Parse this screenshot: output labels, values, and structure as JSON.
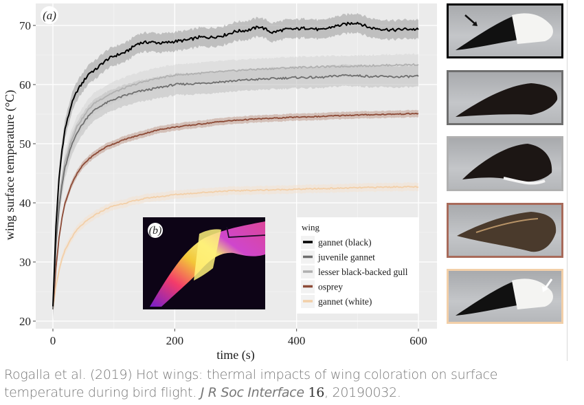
{
  "chart_data": {
    "type": "line",
    "panel_label": "(a)",
    "inset_label": "(b)",
    "xlabel": "time (s)",
    "ylabel": "wing surface temperature (°C)",
    "xlim": [
      -20,
      620
    ],
    "ylim": [
      18.5,
      73.5
    ],
    "xticks": [
      0,
      200,
      400,
      600
    ],
    "yticks": [
      20,
      30,
      40,
      50,
      60,
      70
    ],
    "grid": true,
    "legend": {
      "title": "wing",
      "position": "bottom-right"
    },
    "series": [
      {
        "name": "gannet (black)",
        "color": "#000000",
        "band": "#9a9a9a",
        "x": [
          0,
          5,
          10,
          15,
          20,
          30,
          40,
          50,
          60,
          70,
          80,
          90,
          100,
          120,
          140,
          160,
          180,
          200,
          220,
          240,
          260,
          280,
          300,
          320,
          340,
          360,
          380,
          400,
          420,
          440,
          460,
          480,
          500,
          520,
          540,
          560,
          580,
          600
        ],
        "y": [
          22.5,
          36,
          44,
          49,
          52.5,
          56.5,
          59,
          60.5,
          62,
          62.5,
          63.5,
          64.3,
          64.8,
          65.5,
          67,
          67.2,
          67,
          67.3,
          67.5,
          68,
          68,
          68.3,
          69,
          69.2,
          69.8,
          68.8,
          69.3,
          69.4,
          69.6,
          69.2,
          69.8,
          70.2,
          70.5,
          69.6,
          69.4,
          69.2,
          69.4,
          69.3
        ]
      },
      {
        "name": "juvenile gannet",
        "color": "#6e6e6e",
        "band": "#bdbdbd",
        "x": [
          0,
          5,
          10,
          15,
          20,
          30,
          40,
          50,
          60,
          70,
          80,
          90,
          100,
          120,
          140,
          160,
          180,
          200,
          240,
          280,
          320,
          360,
          400,
          440,
          480,
          520,
          560,
          600
        ],
        "y": [
          22,
          33,
          39,
          43,
          46,
          49.5,
          52,
          53.5,
          55,
          55.8,
          56.5,
          57,
          57.5,
          58.2,
          58.8,
          59.2,
          59.6,
          60,
          60.2,
          60.5,
          60.8,
          61,
          61.2,
          61.2,
          61.6,
          61.4,
          61.3,
          61.4
        ]
      },
      {
        "name": "lesser black-backed gull",
        "color": "#b0b0b0",
        "band": "#d5d5d5",
        "x": [
          0,
          5,
          10,
          15,
          20,
          30,
          40,
          50,
          60,
          70,
          80,
          90,
          100,
          120,
          140,
          160,
          180,
          200,
          240,
          280,
          320,
          360,
          400,
          440,
          480,
          520,
          560,
          600
        ],
        "y": [
          22,
          33.5,
          40,
          44,
          47,
          50.5,
          53,
          54.5,
          56,
          57,
          57.6,
          58.2,
          58.7,
          59.5,
          60.2,
          60.8,
          61.2,
          61.6,
          61.9,
          62.2,
          62.5,
          62.7,
          62.9,
          63,
          63.1,
          63.2,
          63.3,
          63.4
        ]
      },
      {
        "name": "osprey",
        "color": "#8c4a36",
        "band": "#c09a8c",
        "x": [
          0,
          5,
          10,
          15,
          20,
          30,
          40,
          50,
          60,
          70,
          80,
          90,
          100,
          120,
          140,
          160,
          180,
          200,
          240,
          280,
          320,
          360,
          400,
          440,
          480,
          520,
          560,
          600
        ],
        "y": [
          22,
          29,
          34,
          37.5,
          40,
          43,
          45,
          46.5,
          47.5,
          48.3,
          49,
          49.6,
          50,
          50.8,
          51.4,
          52,
          52.5,
          52.8,
          53.3,
          53.8,
          54.1,
          54.3,
          54.5,
          54.6,
          54.8,
          54.9,
          55,
          55.1
        ]
      },
      {
        "name": "gannet (white)",
        "color": "#f2cfa8",
        "band": "#f4e2d0",
        "x": [
          0,
          5,
          10,
          15,
          20,
          30,
          40,
          50,
          60,
          70,
          80,
          90,
          100,
          120,
          140,
          160,
          180,
          200,
          240,
          280,
          320,
          360,
          400,
          440,
          480,
          520,
          560,
          600
        ],
        "y": [
          22,
          26,
          28.5,
          30.5,
          32,
          34,
          35.5,
          36.5,
          37.3,
          38,
          38.6,
          39.1,
          39.5,
          40,
          40.5,
          40.9,
          41.1,
          41.4,
          41.7,
          42,
          42.1,
          42.2,
          42.3,
          42.4,
          42.5,
          42.6,
          42.7,
          42.7
        ]
      }
    ]
  },
  "photos": [
    {
      "name": "gannet (black)",
      "border": "#000000",
      "arrow": "black"
    },
    {
      "name": "juvenile gannet",
      "border": "#6e6e6e",
      "arrow": ""
    },
    {
      "name": "lesser black-backed gull",
      "border": "#b0b0b0",
      "arrow": ""
    },
    {
      "name": "osprey",
      "border": "#a86a5a",
      "arrow": ""
    },
    {
      "name": "gannet (white)",
      "border": "#f2cfa8",
      "arrow": "white"
    }
  ],
  "caption": {
    "authors": "Rogalla et al. (2019) Hot wings: thermal impacts of wing coloration on surface temperature during bird flight.",
    "journal": "J R Soc Interface",
    "volume": "16",
    "article": ", 20190032."
  }
}
